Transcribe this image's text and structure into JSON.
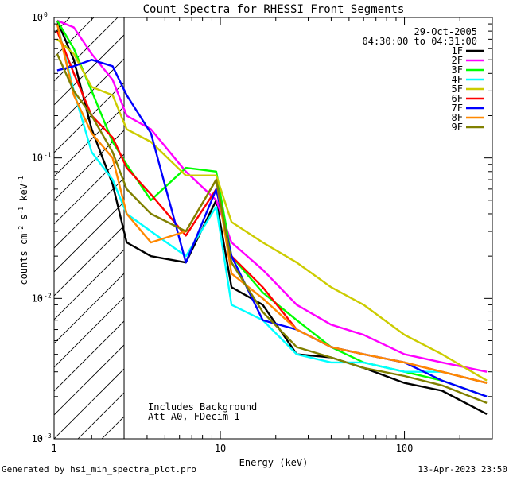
{
  "chart_data": {
    "type": "line",
    "title": "Count Spectra for RHESSI Front Segments",
    "xlabel": "Energy (keV)",
    "ylabel": "counts cm-2 s-1 keV-1",
    "xscale": "log",
    "yscale": "log",
    "xlim": [
      1.25,
      300
    ],
    "ylim": [
      0.001,
      1.0
    ],
    "x_ticks": [
      {
        "v": 1,
        "label": "1"
      },
      {
        "v": 10,
        "label": "10"
      },
      {
        "v": 100,
        "label": "100"
      }
    ],
    "y_ticks": [
      {
        "v": 1,
        "label": "10^0"
      },
      {
        "v": 0.1,
        "label": "10^-1"
      },
      {
        "v": 0.01,
        "label": "10^-2"
      },
      {
        "v": 0.001,
        "label": "10^-3"
      }
    ],
    "hatched_region_max_keV": 3.0,
    "date": "29-Oct-2005",
    "time_range": "04:30:00 to 04:31:00",
    "annotations": [
      "Includes Background",
      "Att A0, FDecim 1"
    ],
    "series": [
      {
        "name": "1F",
        "color": "#000000",
        "values": [
          [
            1.3,
            0.95
          ],
          [
            1.6,
            0.5
          ],
          [
            2.0,
            0.16
          ],
          [
            2.6,
            0.065
          ],
          [
            3.1,
            0.025
          ],
          [
            4.2,
            0.02
          ],
          [
            6.5,
            0.018
          ],
          [
            9.5,
            0.05
          ],
          [
            11.5,
            0.012
          ],
          [
            17,
            0.009
          ],
          [
            26,
            0.004
          ],
          [
            40,
            0.0038
          ],
          [
            60,
            0.0032
          ],
          [
            100,
            0.0025
          ],
          [
            160,
            0.0022
          ],
          [
            280,
            0.0015
          ]
        ]
      },
      {
        "name": "2F",
        "color": "#ff00ff",
        "values": [
          [
            1.3,
            0.95
          ],
          [
            1.6,
            0.85
          ],
          [
            2.0,
            0.55
          ],
          [
            2.6,
            0.36
          ],
          [
            3.1,
            0.2
          ],
          [
            4.2,
            0.16
          ],
          [
            6.5,
            0.08
          ],
          [
            9.5,
            0.05
          ],
          [
            11.5,
            0.025
          ],
          [
            17,
            0.016
          ],
          [
            26,
            0.009
          ],
          [
            40,
            0.0065
          ],
          [
            60,
            0.0055
          ],
          [
            100,
            0.004
          ],
          [
            160,
            0.0035
          ],
          [
            280,
            0.003
          ]
        ]
      },
      {
        "name": "3F",
        "color": "#00ff00",
        "values": [
          [
            1.3,
            0.95
          ],
          [
            1.6,
            0.6
          ],
          [
            2.0,
            0.3
          ],
          [
            2.6,
            0.13
          ],
          [
            3.1,
            0.09
          ],
          [
            4.2,
            0.05
          ],
          [
            6.5,
            0.085
          ],
          [
            9.5,
            0.08
          ],
          [
            11.5,
            0.02
          ],
          [
            17,
            0.011
          ],
          [
            26,
            0.007
          ],
          [
            40,
            0.0045
          ],
          [
            60,
            0.0035
          ],
          [
            100,
            0.003
          ],
          [
            160,
            0.0026
          ],
          [
            280,
            0.002
          ]
        ]
      },
      {
        "name": "4F",
        "color": "#00ffff",
        "values": [
          [
            1.3,
            0.9
          ],
          [
            1.6,
            0.3
          ],
          [
            2.0,
            0.11
          ],
          [
            2.6,
            0.07
          ],
          [
            3.1,
            0.04
          ],
          [
            4.2,
            0.03
          ],
          [
            6.5,
            0.02
          ],
          [
            9.5,
            0.045
          ],
          [
            11.5,
            0.009
          ],
          [
            17,
            0.007
          ],
          [
            26,
            0.004
          ],
          [
            40,
            0.0035
          ],
          [
            60,
            0.0035
          ],
          [
            100,
            0.003
          ],
          [
            160,
            0.003
          ],
          [
            280,
            0.0025
          ]
        ]
      },
      {
        "name": "5F",
        "color": "#cccc00",
        "values": [
          [
            1.3,
            0.7
          ],
          [
            1.6,
            0.55
          ],
          [
            2.0,
            0.32
          ],
          [
            2.6,
            0.28
          ],
          [
            3.1,
            0.16
          ],
          [
            4.2,
            0.13
          ],
          [
            6.5,
            0.075
          ],
          [
            9.5,
            0.075
          ],
          [
            11.5,
            0.035
          ],
          [
            17,
            0.025
          ],
          [
            26,
            0.018
          ],
          [
            40,
            0.012
          ],
          [
            60,
            0.009
          ],
          [
            100,
            0.0055
          ],
          [
            160,
            0.004
          ],
          [
            280,
            0.0026
          ]
        ]
      },
      {
        "name": "6F",
        "color": "#ff0000",
        "values": [
          [
            1.3,
            0.8
          ],
          [
            1.6,
            0.4
          ],
          [
            2.0,
            0.2
          ],
          [
            2.6,
            0.14
          ],
          [
            3.1,
            0.085
          ],
          [
            4.2,
            0.055
          ],
          [
            6.5,
            0.028
          ],
          [
            9.5,
            0.06
          ],
          [
            11.5,
            0.02
          ],
          [
            17,
            0.012
          ],
          [
            26,
            0.006
          ],
          [
            40,
            0.0045
          ],
          [
            60,
            0.004
          ],
          [
            100,
            0.0035
          ],
          [
            160,
            0.003
          ],
          [
            280,
            0.0025
          ]
        ]
      },
      {
        "name": "7F",
        "color": "#0000ff",
        "values": [
          [
            1.3,
            0.42
          ],
          [
            1.6,
            0.45
          ],
          [
            2.0,
            0.5
          ],
          [
            2.6,
            0.45
          ],
          [
            3.1,
            0.28
          ],
          [
            4.2,
            0.15
          ],
          [
            6.5,
            0.018
          ],
          [
            9.5,
            0.06
          ],
          [
            11.5,
            0.02
          ],
          [
            17,
            0.007
          ],
          [
            26,
            0.006
          ],
          [
            40,
            0.0045
          ],
          [
            60,
            0.004
          ],
          [
            100,
            0.0035
          ],
          [
            160,
            0.0026
          ],
          [
            280,
            0.002
          ]
        ]
      },
      {
        "name": "8F",
        "color": "#ff8800",
        "values": [
          [
            1.3,
            0.9
          ],
          [
            1.6,
            0.28
          ],
          [
            2.0,
            0.15
          ],
          [
            2.6,
            0.1
          ],
          [
            3.1,
            0.04
          ],
          [
            4.2,
            0.025
          ],
          [
            6.5,
            0.03
          ],
          [
            9.5,
            0.07
          ],
          [
            11.5,
            0.015
          ],
          [
            17,
            0.01
          ],
          [
            26,
            0.006
          ],
          [
            40,
            0.0045
          ],
          [
            60,
            0.004
          ],
          [
            100,
            0.0035
          ],
          [
            160,
            0.003
          ],
          [
            280,
            0.0025
          ]
        ]
      },
      {
        "name": "9F",
        "color": "#808000",
        "values": [
          [
            1.3,
            0.55
          ],
          [
            1.6,
            0.3
          ],
          [
            2.0,
            0.2
          ],
          [
            2.6,
            0.11
          ],
          [
            3.1,
            0.06
          ],
          [
            4.2,
            0.04
          ],
          [
            6.5,
            0.03
          ],
          [
            9.5,
            0.07
          ],
          [
            11.5,
            0.018
          ],
          [
            17,
            0.008
          ],
          [
            26,
            0.0045
          ],
          [
            40,
            0.0038
          ],
          [
            60,
            0.0032
          ],
          [
            100,
            0.0028
          ],
          [
            160,
            0.0024
          ],
          [
            280,
            0.0018
          ]
        ]
      }
    ]
  },
  "footer": {
    "left": "Generated by hsi_min_spectra_plot.pro",
    "right": "13-Apr-2023 23:50"
  }
}
